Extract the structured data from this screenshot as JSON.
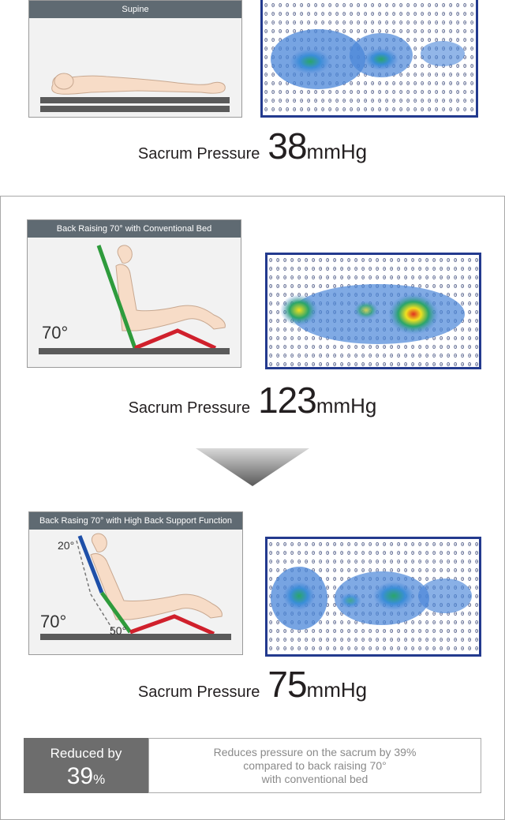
{
  "scenarios": [
    {
      "id": "supine",
      "title": "Supine",
      "angle_label": "",
      "sub_angle_labels": [],
      "pressure_label": "Sacrum Pressure",
      "pressure_value": "38",
      "pressure_unit": "mmHg"
    },
    {
      "id": "conventional",
      "title": "Back Raising 70° with Conventional Bed",
      "angle_label": "70°",
      "sub_angle_labels": [],
      "pressure_label": "Sacrum Pressure",
      "pressure_value": "123",
      "pressure_unit": "mmHg"
    },
    {
      "id": "high-back",
      "title": "Back Rasing 70° with High Back Support Function",
      "angle_label": "70°",
      "sub_angle_labels": [
        "20°",
        "50°"
      ],
      "pressure_label": "Sacrum Pressure",
      "pressure_value": "75",
      "pressure_unit": "mmHg"
    }
  ],
  "summary": {
    "reduced_label": "Reduced by",
    "reduced_value": "39",
    "reduced_unit": "%",
    "note_lines": [
      "Reduces pressure on the sacrum by 39%",
      "compared to back raising 70°",
      "with conventional bed"
    ]
  },
  "colors": {
    "panel_title_bg": "#5f6a72",
    "map_border": "#233a8e",
    "heat_low": "#4a86d8",
    "heat_mid": "#2aa56a",
    "heat_high": "#f0e020",
    "heat_peak": "#e03020",
    "back_support_blue": "#1e4fa8",
    "back_green": "#2e9b3c",
    "leg_red": "#d0202c",
    "reduced_box_bg": "#6d6d6d"
  }
}
